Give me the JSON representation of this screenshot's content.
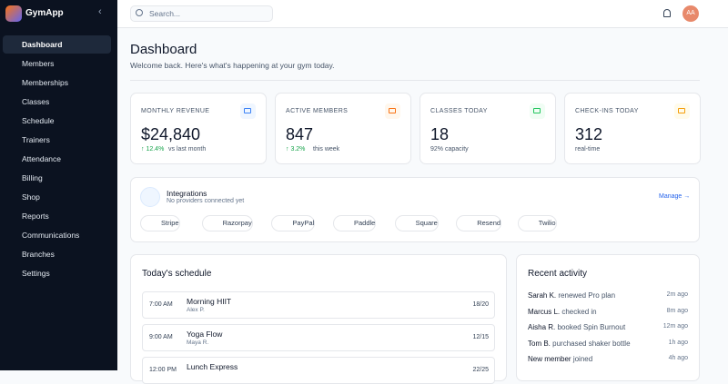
{
  "sidebar": {
    "brand": "GymApp",
    "nav": [
      "Dashboard",
      "Members",
      "Memberships",
      "Classes",
      "Schedule",
      "Trainers",
      "Attendance",
      "Billing",
      "Shop",
      "Reports",
      "Communications",
      "Branches",
      "Settings"
    ],
    "active": 0
  },
  "header": {
    "search_placeholder": "Search...",
    "avatar": "AA"
  },
  "page": {
    "title": "Dashboard",
    "subtitle": "Welcome back. Here's what's happening at your gym today."
  },
  "stats": [
    {
      "label": "MONTHLY REVENUE",
      "value": "$24,840",
      "delta": "↑ 12.4%",
      "note": "vs last month",
      "color": "#3b82f6",
      "bg": "#eff6ff"
    },
    {
      "label": "ACTIVE MEMBERS",
      "value": "847",
      "delta": "↑ 3.2%",
      "note": "this week",
      "color": "#f97316",
      "bg": "#fff7ed"
    },
    {
      "label": "CLASSES TODAY",
      "value": "18",
      "delta": null,
      "note": "92% capacity",
      "color": "#22c55e",
      "bg": "#f0fdf4"
    },
    {
      "label": "CHECK-INS TODAY",
      "value": "312",
      "delta": null,
      "note": "real-time",
      "color": "#f59e0b",
      "bg": "#fffbeb"
    }
  ],
  "integrations": {
    "title": "Integrations",
    "subtitle": "No providers connected yet",
    "action": "Manage →",
    "providers": [
      {
        "name": "Stripe",
        "color": "#6d5dfc"
      },
      {
        "name": "Razorpay",
        "color": "#2563eb"
      },
      {
        "name": "PayPal",
        "color": "#f97316"
      },
      {
        "name": "Paddle",
        "color": "#16a34a"
      },
      {
        "name": "Square",
        "color": "#111827"
      },
      {
        "name": "Resend",
        "color": "#ec4899"
      },
      {
        "name": "Twilio",
        "color": "#e11d48"
      }
    ]
  },
  "schedule": {
    "title": "Today's schedule",
    "rows": [
      {
        "time": "7:00 AM",
        "name": "Morning HIIT",
        "trainer": "Alex P.",
        "capacity": "18/20"
      },
      {
        "time": "9:00 AM",
        "name": "Yoga Flow",
        "trainer": "Maya R.",
        "capacity": "12/15"
      },
      {
        "time": "12:00 PM",
        "name": "Lunch Express",
        "trainer": "",
        "capacity": "22/25"
      }
    ]
  },
  "activity": {
    "title": "Recent activity",
    "rows": [
      {
        "who": "Sarah K.",
        "what": "renewed Pro plan",
        "when": "2m ago"
      },
      {
        "who": "Marcus L.",
        "what": "checked in",
        "when": "8m ago"
      },
      {
        "who": "Aisha R.",
        "what": "booked Spin Burnout",
        "when": "12m ago"
      },
      {
        "who": "Tom B.",
        "what": "purchased shaker bottle",
        "when": "1h ago"
      },
      {
        "who": "New member",
        "what": "joined",
        "when": "4h ago"
      }
    ]
  }
}
